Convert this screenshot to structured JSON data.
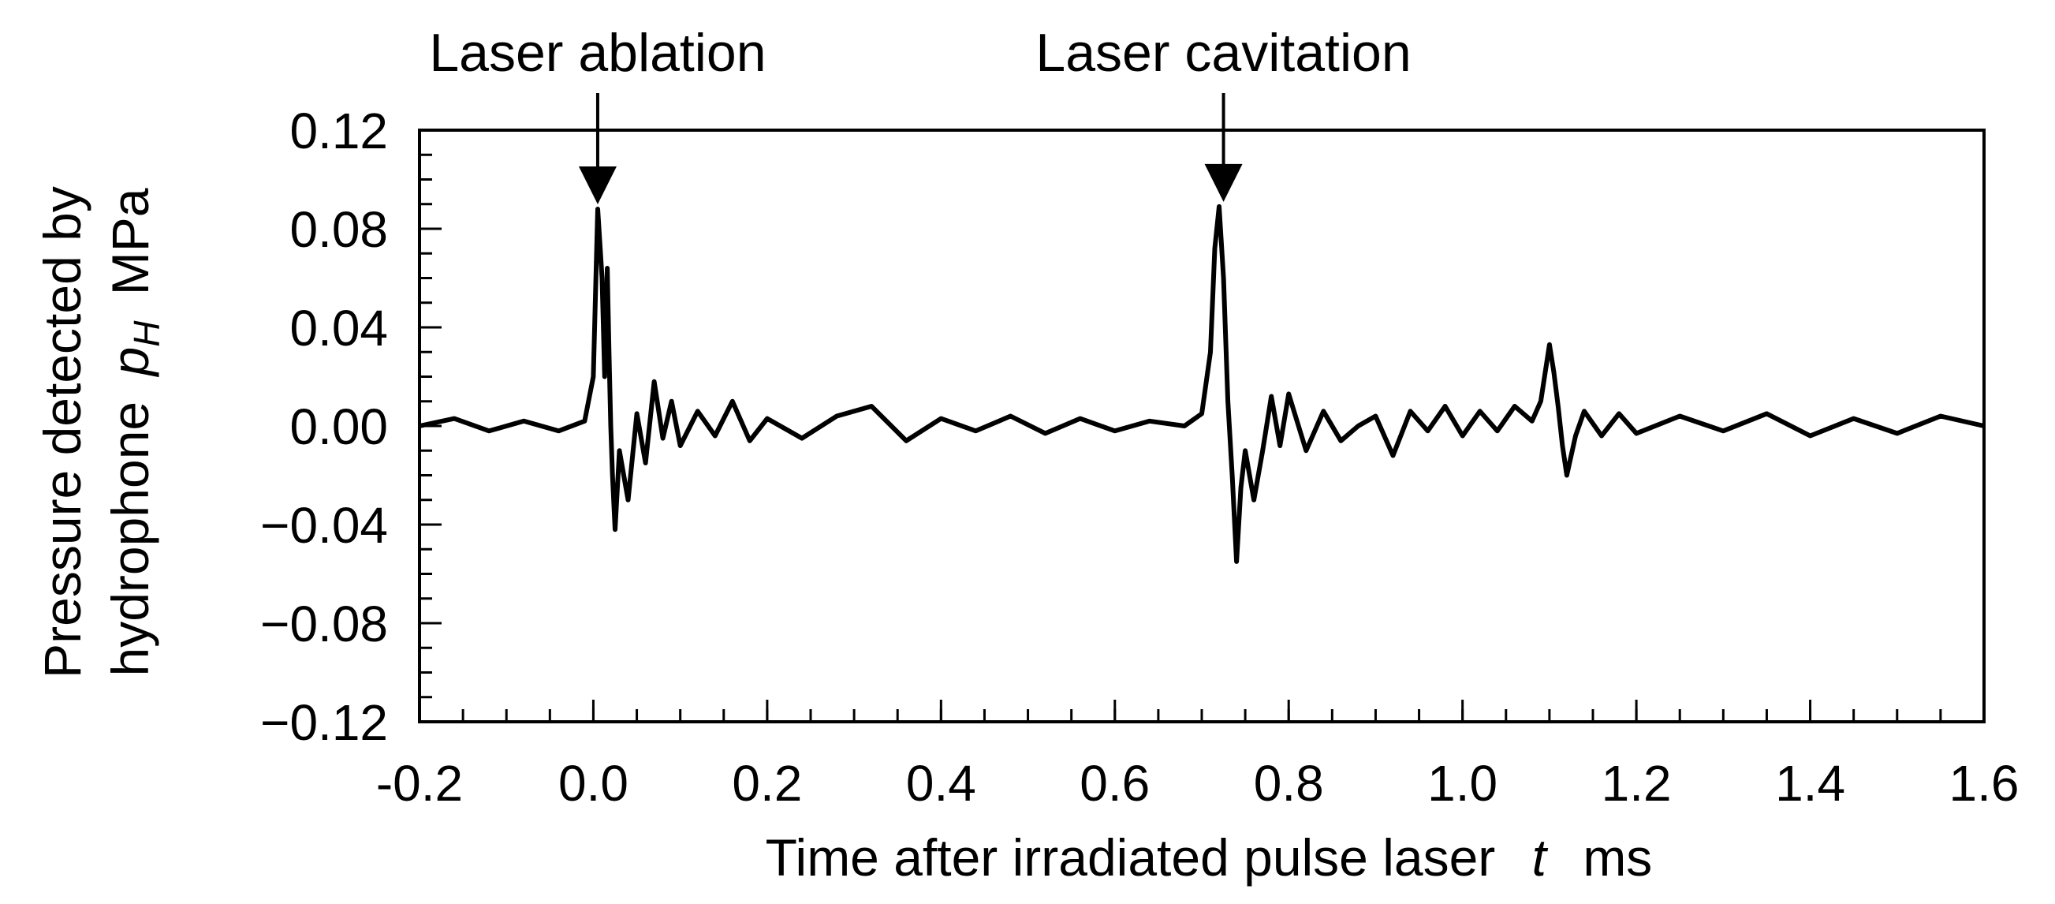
{
  "chart_data": {
    "type": "line",
    "title": "",
    "xlabel": {
      "prefix": "Time after irradiated pulse laser",
      "symbol": "t",
      "unit": "ms"
    },
    "ylabel": {
      "line1": "Pressure detected by",
      "line2_prefix": "hydrophone",
      "symbol": "p",
      "subscript": "H",
      "unit": "MPa"
    },
    "xlim": [
      -0.2,
      1.6
    ],
    "ylim": [
      -0.12,
      0.12
    ],
    "x_ticks": [
      -0.2,
      0.0,
      0.2,
      0.4,
      0.6,
      0.8,
      1.0,
      1.2,
      1.4,
      1.6
    ],
    "x_tick_labels": [
      "-0.2",
      "0.0",
      "0.2",
      "0.4",
      "0.6",
      "0.8",
      "1.0",
      "1.2",
      "1.4",
      "1.6"
    ],
    "y_ticks": [
      0.12,
      0.08,
      0.04,
      0.0,
      -0.04,
      -0.08,
      -0.12
    ],
    "y_tick_labels": [
      "0.12",
      "0.08",
      "0.04",
      "0.00",
      "−0.04",
      "−0.08",
      "−0.12"
    ],
    "x_minor_step": 0.05,
    "y_minor_step": 0.01,
    "grid": false,
    "line_color": "#000000",
    "series": [
      {
        "x": [
          -0.2,
          -0.16,
          -0.12,
          -0.08,
          -0.04,
          -0.01,
          0.0,
          0.005,
          0.01,
          0.013,
          0.016,
          0.018,
          0.02,
          0.022,
          0.025,
          0.03,
          0.04,
          0.05,
          0.06,
          0.07,
          0.08,
          0.09,
          0.1,
          0.12,
          0.14,
          0.16,
          0.18,
          0.2,
          0.24,
          0.28,
          0.32,
          0.36,
          0.4,
          0.44,
          0.48,
          0.52,
          0.56,
          0.6,
          0.64,
          0.68,
          0.7,
          0.71,
          0.715,
          0.72,
          0.725,
          0.73,
          0.735,
          0.74,
          0.745,
          0.75,
          0.76,
          0.77,
          0.78,
          0.79,
          0.8,
          0.82,
          0.84,
          0.86,
          0.88,
          0.9,
          0.92,
          0.94,
          0.96,
          0.98,
          1.0,
          1.02,
          1.04,
          1.06,
          1.08,
          1.09,
          1.1,
          1.105,
          1.11,
          1.115,
          1.12,
          1.13,
          1.14,
          1.16,
          1.18,
          1.2,
          1.25,
          1.3,
          1.35,
          1.4,
          1.45,
          1.5,
          1.55,
          1.6
        ],
        "y": [
          0.0,
          0.003,
          -0.002,
          0.002,
          -0.002,
          0.002,
          0.02,
          0.088,
          0.06,
          0.02,
          0.064,
          0.03,
          0.0,
          -0.02,
          -0.042,
          -0.01,
          -0.03,
          0.005,
          -0.015,
          0.018,
          -0.005,
          0.01,
          -0.008,
          0.006,
          -0.004,
          0.01,
          -0.006,
          0.003,
          -0.005,
          0.004,
          0.008,
          -0.006,
          0.003,
          -0.002,
          0.004,
          -0.003,
          0.003,
          -0.002,
          0.002,
          0.0,
          0.005,
          0.03,
          0.072,
          0.089,
          0.06,
          0.01,
          -0.02,
          -0.055,
          -0.025,
          -0.01,
          -0.03,
          -0.01,
          0.012,
          -0.008,
          0.013,
          -0.01,
          0.006,
          -0.006,
          0.0,
          0.004,
          -0.012,
          0.006,
          -0.002,
          0.008,
          -0.004,
          0.006,
          -0.002,
          0.008,
          0.002,
          0.01,
          0.033,
          0.022,
          0.008,
          -0.008,
          -0.02,
          -0.004,
          0.006,
          -0.004,
          0.005,
          -0.003,
          0.004,
          -0.002,
          0.005,
          -0.004,
          0.003,
          -0.003,
          0.004,
          0.0
        ]
      }
    ],
    "annotations": [
      {
        "text": "Laser ablation",
        "x": 0.005,
        "y": 0.088
      },
      {
        "text": "Laser cavitation",
        "x": 0.725,
        "y": 0.089
      }
    ]
  }
}
